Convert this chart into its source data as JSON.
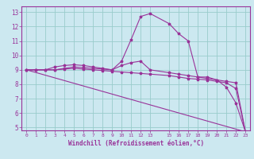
{
  "xlabel": "Windchill (Refroidissement éolien,°C)",
  "background_color": "#cce8f0",
  "line_color": "#993399",
  "grid_color": "#99cccc",
  "xlim": [
    -0.5,
    23.5
  ],
  "ylim": [
    4.8,
    13.4
  ],
  "xticks": [
    0,
    1,
    2,
    3,
    4,
    5,
    6,
    7,
    8,
    9,
    10,
    11,
    12,
    13,
    15,
    16,
    17,
    18,
    19,
    20,
    21,
    22,
    23
  ],
  "yticks": [
    5,
    6,
    7,
    8,
    9,
    10,
    11,
    12,
    13
  ],
  "lines": [
    {
      "x": [
        0,
        1,
        2,
        3,
        4,
        5,
        6,
        7,
        8,
        9,
        10,
        11,
        12,
        13,
        15,
        16,
        17,
        18,
        19,
        20,
        21,
        22,
        23
      ],
      "y": [
        9.0,
        9.0,
        9.0,
        9.2,
        9.3,
        9.35,
        9.3,
        9.2,
        9.1,
        9.0,
        9.6,
        11.1,
        12.7,
        12.9,
        12.2,
        11.5,
        11.0,
        8.5,
        8.5,
        8.3,
        7.8,
        6.7,
        4.7
      ],
      "has_markers": true
    },
    {
      "x": [
        0,
        1,
        2,
        3,
        4,
        5,
        6,
        7,
        8,
        9,
        10,
        11,
        12,
        13,
        15,
        16,
        17,
        18,
        19,
        20,
        21,
        22,
        23
      ],
      "y": [
        9.0,
        9.0,
        9.0,
        9.0,
        9.1,
        9.2,
        9.15,
        9.1,
        9.05,
        9.0,
        9.3,
        9.5,
        9.6,
        9.0,
        8.8,
        8.7,
        8.6,
        8.5,
        8.4,
        8.3,
        8.2,
        8.1,
        4.7
      ],
      "has_markers": true
    },
    {
      "x": [
        0,
        1,
        2,
        3,
        4,
        5,
        6,
        7,
        8,
        9,
        10,
        11,
        12,
        13,
        15,
        16,
        17,
        18,
        19,
        20,
        21,
        22,
        23
      ],
      "y": [
        9.0,
        9.0,
        9.0,
        9.0,
        9.05,
        9.1,
        9.05,
        9.0,
        8.95,
        8.9,
        8.85,
        8.8,
        8.75,
        8.7,
        8.6,
        8.5,
        8.4,
        8.35,
        8.3,
        8.2,
        8.1,
        7.7,
        4.7
      ],
      "has_markers": true
    },
    {
      "x": [
        0,
        23
      ],
      "y": [
        9.0,
        4.7
      ],
      "has_markers": false
    }
  ]
}
